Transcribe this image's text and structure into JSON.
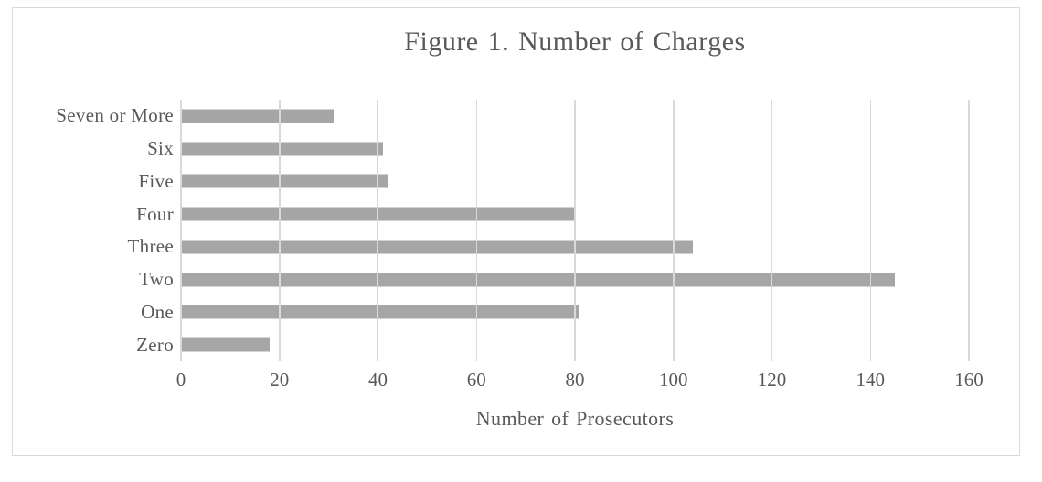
{
  "chart_data": {
    "type": "bar",
    "orientation": "horizontal",
    "title": "Figure 1. Number of Charges",
    "xlabel": "Number of Prosecutors",
    "ylabel": "",
    "categories": [
      "Seven or More",
      "Six",
      "Five",
      "Four",
      "Three",
      "Two",
      "One",
      "Zero"
    ],
    "values": [
      31,
      41,
      42,
      80,
      104,
      145,
      81,
      18
    ],
    "xlim": [
      0,
      160
    ],
    "xticks": [
      0,
      20,
      40,
      60,
      80,
      100,
      120,
      140,
      160
    ],
    "grid": true,
    "legend": false,
    "colors": {
      "bar": "#a6a6a6",
      "gridline": "#d9d9d9",
      "text": "#595959",
      "frame_border": "#d9d9d9",
      "background": "#ffffff"
    }
  }
}
